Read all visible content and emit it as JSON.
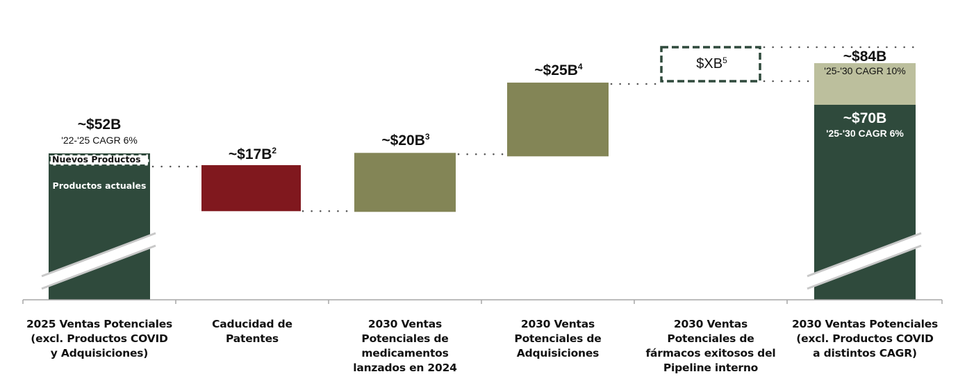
{
  "chart_data": {
    "type": "waterfall",
    "title": "",
    "unit": "USD billions",
    "colors": {
      "base": "#2f4a3c",
      "decrease": "#80181e",
      "increase": "#838556",
      "upside": "#bcbf9d",
      "dashed_border": "#2f4a3c",
      "connector": "#555555",
      "axis": "#a6a6a6",
      "break_mark": "#c8c8c8"
    },
    "categories": [
      "2025 Ventas Potenciales (excl. Productos COVID y Adquisiciones)",
      "Caducidad de Patentes",
      "2030 Ventas Potenciales de medicamentos lanzados en 2024",
      "2030 Ventas Potenciales de Adquisiciones",
      "2030 Ventas Potenciales de fármacos exitosos del Pipeline interno",
      "2030 Ventas Potenciales (excl. Productos COVID a distintos CAGR)"
    ],
    "category_lines": [
      [
        "2025 Ventas Potenciales",
        "(excl. Productos COVID",
        "y Adquisiciones)"
      ],
      [
        "Caducidad de",
        "Patentes"
      ],
      [
        "2030 Ventas",
        "Potenciales de",
        "medicamentos",
        "lanzados en 2024"
      ],
      [
        "2030 Ventas",
        "Potenciales de",
        "Adquisiciones"
      ],
      [
        "2030 Ventas",
        "Potenciales de",
        "fármacos exitosos del",
        "Pipeline interno"
      ],
      [
        "2030 Ventas Potenciales",
        "(excl. Productos COVID",
        "a distintos CAGR)"
      ]
    ],
    "steps": [
      {
        "kind": "total",
        "value": 52,
        "label": "~$52B",
        "sublabel": "'22-'25 CAGR 6%",
        "segments": [
          {
            "name": "Productos actuales",
            "label": "Productos actuales"
          },
          {
            "name": "Nuevos Productos",
            "label": "Nuevos Productos",
            "style": "dashed"
          }
        ],
        "axis_break": true
      },
      {
        "kind": "decrease",
        "value": -17,
        "label": "~$17B",
        "footnote": "2"
      },
      {
        "kind": "increase",
        "value": 20,
        "label": "~$20B",
        "footnote": "3"
      },
      {
        "kind": "increase",
        "value": 25,
        "label": "~$25B",
        "footnote": "4"
      },
      {
        "kind": "increase_unknown",
        "value": null,
        "label": "$XB",
        "footnote": "5",
        "style": "dashed"
      },
      {
        "kind": "total",
        "axis_break": true,
        "segments": [
          {
            "name": "base",
            "value": 70,
            "label": "~$70B",
            "sublabel": "'25-'30 CAGR 6%"
          },
          {
            "name": "upside",
            "value": 84,
            "label": "~$84B",
            "sublabel": "'25-'30 CAGR 10%"
          }
        ]
      }
    ],
    "xlabel": "",
    "ylabel": "",
    "grid": false,
    "legend": "none"
  }
}
